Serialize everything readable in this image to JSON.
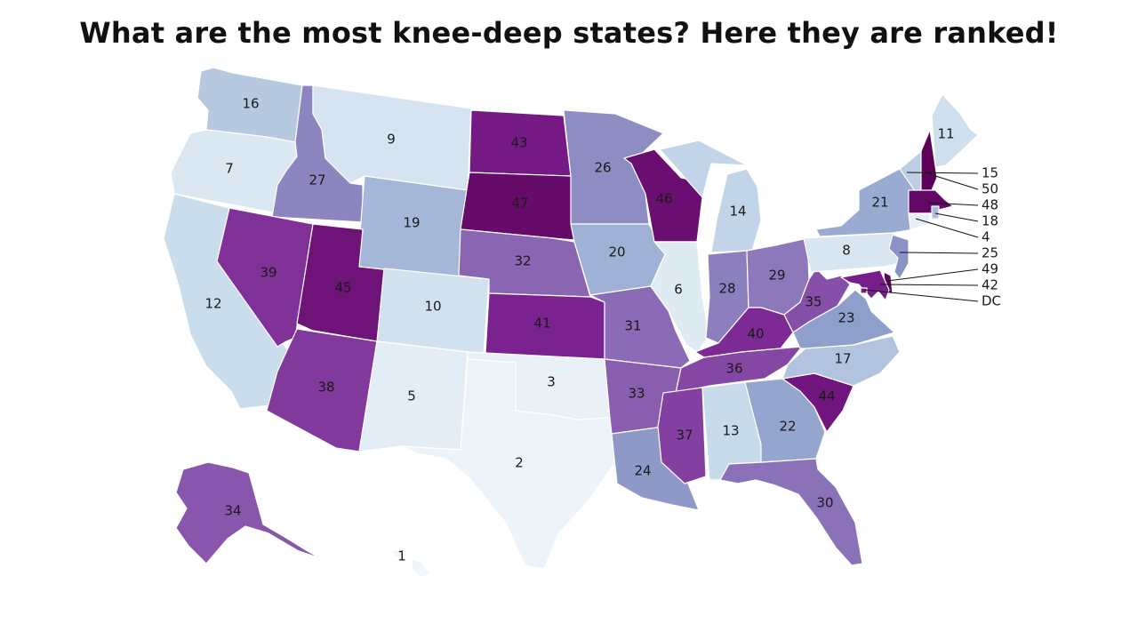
{
  "title": "What are the most knee-deep states? Here they are ranked!",
  "color_scale": {
    "low": "#eef4f9",
    "high": "#5e005e"
  },
  "states": [
    {
      "code": "WA",
      "rank": "16"
    },
    {
      "code": "OR",
      "rank": "7"
    },
    {
      "code": "CA",
      "rank": "12"
    },
    {
      "code": "ID",
      "rank": "27"
    },
    {
      "code": "NV",
      "rank": "39"
    },
    {
      "code": "MT",
      "rank": "9"
    },
    {
      "code": "WY",
      "rank": "19"
    },
    {
      "code": "UT",
      "rank": "45"
    },
    {
      "code": "AZ",
      "rank": "38"
    },
    {
      "code": "CO",
      "rank": "10"
    },
    {
      "code": "NM",
      "rank": "5"
    },
    {
      "code": "ND",
      "rank": "43"
    },
    {
      "code": "SD",
      "rank": "47"
    },
    {
      "code": "NE",
      "rank": "32"
    },
    {
      "code": "KS",
      "rank": "41"
    },
    {
      "code": "OK",
      "rank": "3"
    },
    {
      "code": "TX",
      "rank": "2"
    },
    {
      "code": "MN",
      "rank": "26"
    },
    {
      "code": "IA",
      "rank": "20"
    },
    {
      "code": "MO",
      "rank": "31"
    },
    {
      "code": "AR",
      "rank": "33"
    },
    {
      "code": "LA",
      "rank": "24"
    },
    {
      "code": "WI",
      "rank": "46"
    },
    {
      "code": "IL",
      "rank": "6"
    },
    {
      "code": "MI",
      "rank": "14"
    },
    {
      "code": "IN",
      "rank": "28"
    },
    {
      "code": "OH",
      "rank": "29"
    },
    {
      "code": "KY",
      "rank": "40"
    },
    {
      "code": "TN",
      "rank": "36"
    },
    {
      "code": "MS",
      "rank": "37"
    },
    {
      "code": "AL",
      "rank": "13"
    },
    {
      "code": "GA",
      "rank": "22"
    },
    {
      "code": "FL",
      "rank": "30"
    },
    {
      "code": "SC",
      "rank": "44"
    },
    {
      "code": "NC",
      "rank": "17"
    },
    {
      "code": "VA",
      "rank": "23"
    },
    {
      "code": "WV",
      "rank": "35"
    },
    {
      "code": "PA",
      "rank": "8"
    },
    {
      "code": "NY",
      "rank": "21"
    },
    {
      "code": "ME",
      "rank": "11"
    },
    {
      "code": "AK",
      "rank": "34"
    },
    {
      "code": "HI",
      "rank": "1"
    },
    {
      "code": "VT",
      "rank": "15"
    },
    {
      "code": "NH",
      "rank": "50"
    },
    {
      "code": "MA",
      "rank": "48"
    },
    {
      "code": "RI",
      "rank": "18"
    },
    {
      "code": "CT",
      "rank": "4"
    },
    {
      "code": "NJ",
      "rank": "25"
    },
    {
      "code": "DE",
      "rank": "49"
    },
    {
      "code": "MD",
      "rank": "42"
    },
    {
      "code": "DC",
      "rank": "DC"
    }
  ]
}
